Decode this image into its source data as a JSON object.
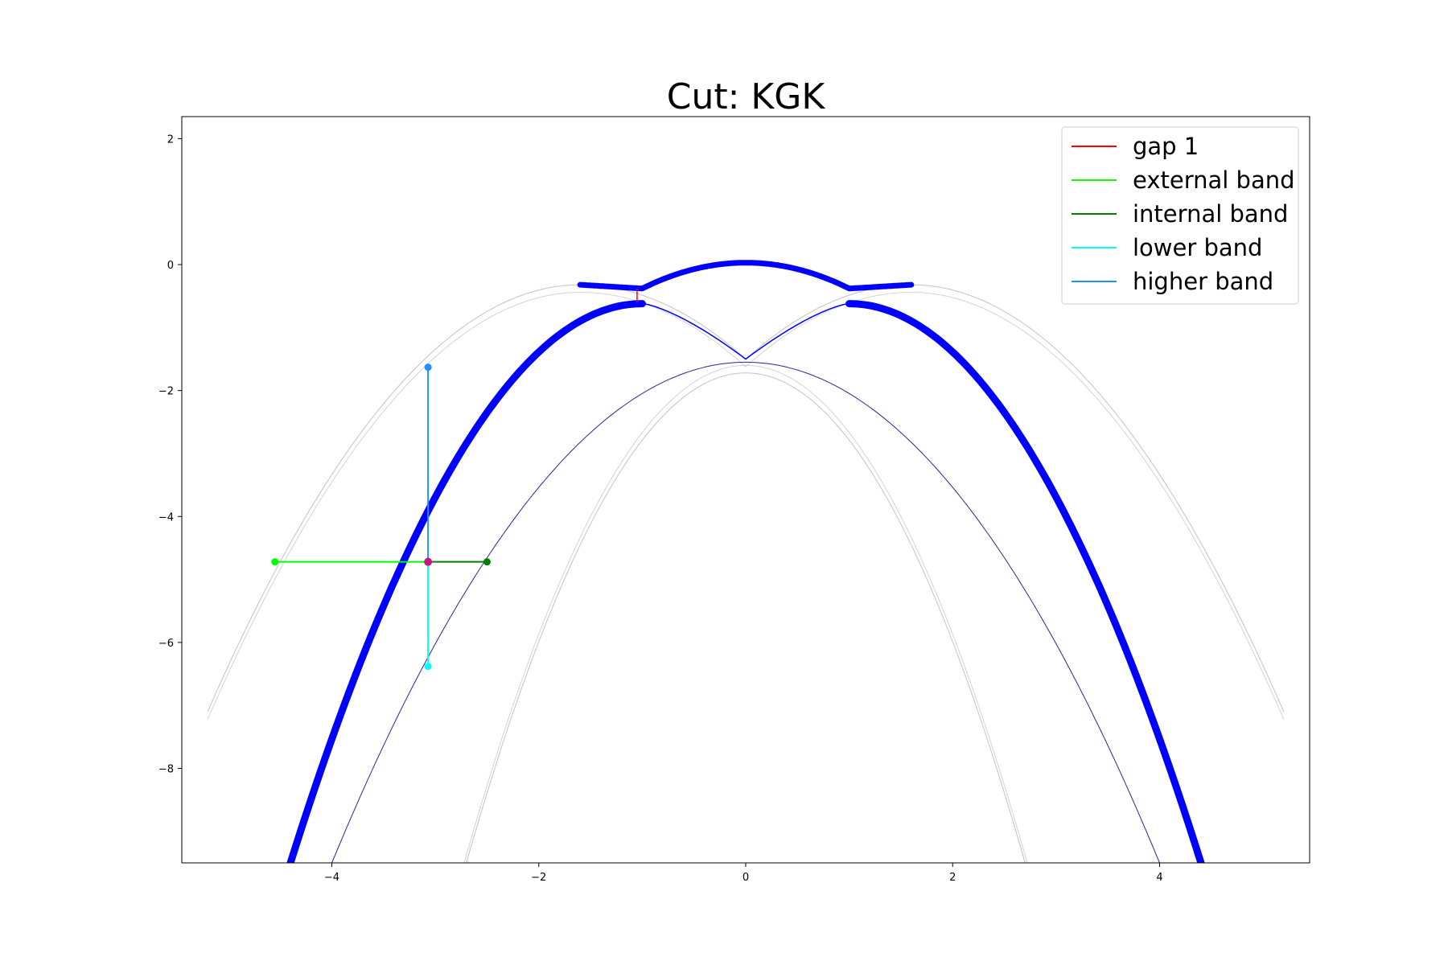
{
  "chart_data": {
    "type": "line",
    "title": "Cut: KGK",
    "xlabel": "",
    "ylabel": "",
    "xlim": [
      -5.45,
      5.45
    ],
    "ylim": [
      -9.5,
      2.35
    ],
    "grid": false,
    "legend_position": "top-right",
    "x_ticks": [
      -4,
      -2,
      0,
      2,
      4
    ],
    "y_ticks": [
      2,
      0,
      -2,
      -4,
      -6,
      -8
    ],
    "bands": {
      "main_band": {
        "color": "#0000ff",
        "points": [
          [
            -4.4,
            -9.5
          ],
          [
            -3.07,
            -4.72
          ],
          [
            -1.8,
            -1.7
          ],
          [
            -1.0,
            -0.62
          ],
          [
            0,
            -1.5
          ],
          [
            1.0,
            -0.62
          ],
          [
            1.8,
            -1.7
          ],
          [
            3.07,
            -4.72
          ],
          [
            4.4,
            -9.5
          ]
        ]
      },
      "top_band": {
        "color": "#0000ff",
        "points": [
          [
            -1.6,
            -0.32
          ],
          [
            -1.0,
            -0.38
          ],
          [
            0,
            0.03
          ],
          [
            1.0,
            -0.38
          ],
          [
            1.6,
            -0.32
          ]
        ]
      },
      "thin_band": {
        "color": "#00008b",
        "points": [
          [
            -4.0,
            -9.5
          ],
          [
            -2.5,
            -4.72
          ],
          [
            0,
            -1.55
          ],
          [
            2.5,
            -4.72
          ],
          [
            4.0,
            -9.5
          ]
        ]
      },
      "outer_faint_band": {
        "color": "#aaaaaa",
        "points": [
          [
            -5.2,
            -7.1
          ],
          [
            -4.55,
            -4.72
          ],
          [
            -1.6,
            -0.32
          ],
          [
            0,
            -1.5
          ],
          [
            1.6,
            -0.32
          ],
          [
            5.2,
            -7.1
          ]
        ]
      },
      "inner_faint_band": {
        "color": "#aaaaaa",
        "points": [
          [
            -2.7,
            -9.5
          ],
          [
            0,
            -1.72
          ],
          [
            2.7,
            -9.5
          ]
        ]
      }
    },
    "markers": {
      "gap_1": {
        "x": -1.05,
        "y_top": -0.38,
        "y_bottom": -0.6
      },
      "center_point": {
        "x": -3.07,
        "y": -4.72
      },
      "external_band": {
        "x_end": -4.55,
        "y": -4.72
      },
      "internal_band": {
        "x_end": -2.5,
        "y": -4.72
      },
      "lower_band": {
        "x": -3.07,
        "y_end": -6.38
      },
      "higher_band": {
        "x": -3.07,
        "y_end": -1.63
      }
    },
    "series": [
      {
        "name": "gap 1",
        "color": "#ff0000"
      },
      {
        "name": "external band",
        "color": "#00ff00"
      },
      {
        "name": "internal band",
        "color": "#008000"
      },
      {
        "name": "lower band",
        "color": "#00ffff"
      },
      {
        "name": "higher band",
        "color": "#1e90ff"
      }
    ]
  }
}
